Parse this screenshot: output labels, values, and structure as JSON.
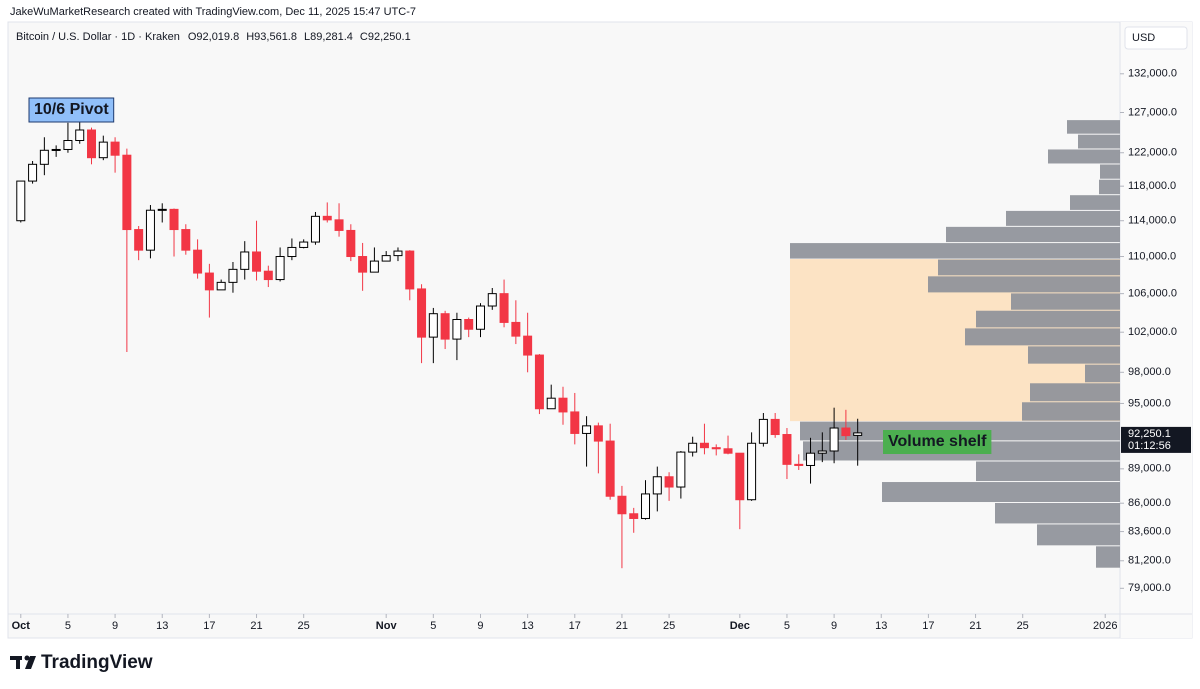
{
  "header": {
    "attribution": "JakeWuMarketResearch created with TradingView.com, Dec 11, 2025 15:47 UTC-7",
    "brand": "TradingView"
  },
  "chart_data": {
    "type": "candlestick",
    "title": "Bitcoin / U.S. Dollar · 1D · Kraken",
    "ohlc_labels": [
      "O92,019.8",
      "H93,561.8",
      "L89,281.4",
      "C92,250.1"
    ],
    "currency": "USD",
    "last_price_label": "92,250.1",
    "countdown": "01:12:56",
    "up_color": "#ffffff",
    "down_color": "#f23645",
    "log_scale": true,
    "x": [
      "2025-10-01",
      "2025-10-02",
      "2025-10-03",
      "2025-10-04",
      "2025-10-05",
      "2025-10-06",
      "2025-10-07",
      "2025-10-08",
      "2025-10-09",
      "2025-10-10",
      "2025-10-11",
      "2025-10-12",
      "2025-10-13",
      "2025-10-14",
      "2025-10-15",
      "2025-10-16",
      "2025-10-17",
      "2025-10-18",
      "2025-10-19",
      "2025-10-20",
      "2025-10-21",
      "2025-10-22",
      "2025-10-23",
      "2025-10-24",
      "2025-10-25",
      "2025-10-26",
      "2025-10-27",
      "2025-10-28",
      "2025-10-29",
      "2025-10-30",
      "2025-10-31",
      "2025-11-01",
      "2025-11-02",
      "2025-11-03",
      "2025-11-04",
      "2025-11-05",
      "2025-11-06",
      "2025-11-07",
      "2025-11-08",
      "2025-11-09",
      "2025-11-10",
      "2025-11-11",
      "2025-11-12",
      "2025-11-13",
      "2025-11-14",
      "2025-11-15",
      "2025-11-16",
      "2025-11-17",
      "2025-11-18",
      "2025-11-19",
      "2025-11-20",
      "2025-11-21",
      "2025-11-22",
      "2025-11-23",
      "2025-11-24",
      "2025-11-25",
      "2025-11-26",
      "2025-11-27",
      "2025-11-28",
      "2025-11-29",
      "2025-11-30",
      "2025-12-01",
      "2025-12-02",
      "2025-12-03",
      "2025-12-04",
      "2025-12-05",
      "2025-12-06",
      "2025-12-07",
      "2025-12-08",
      "2025-12-09",
      "2025-12-10",
      "2025-12-11"
    ],
    "open": [
      114000,
      118600,
      120600,
      122300,
      122400,
      123500,
      124800,
      121400,
      123300,
      121700,
      113000,
      110700,
      115200,
      115300,
      113000,
      110700,
      108200,
      106400,
      107200,
      108600,
      110500,
      108400,
      107500,
      110000,
      111000,
      111600,
      114500,
      114100,
      112900,
      110000,
      108300,
      109500,
      110100,
      110600,
      106500,
      101500,
      103900,
      101300,
      103300,
      102300,
      104700,
      106000,
      103000,
      101600,
      99700,
      94500,
      95500,
      94200,
      92200,
      92900,
      91500,
      86600,
      85100,
      84700,
      86800,
      88300,
      87400,
      90500,
      91300,
      90900,
      90800,
      90400,
      86300,
      91300,
      93500,
      92100,
      89400,
      89300,
      90400,
      90600,
      92700,
      92019.8
    ],
    "high": [
      118600,
      121000,
      123900,
      122900,
      125700,
      126200,
      125100,
      124100,
      123900,
      122500,
      113400,
      115800,
      116000,
      115400,
      113600,
      111900,
      109200,
      107500,
      109400,
      111700,
      114000,
      109000,
      111000,
      112000,
      111900,
      115000,
      116100,
      116000,
      113600,
      111500,
      111000,
      110600,
      111000,
      110700,
      107000,
      104500,
      104200,
      104000,
      103500,
      105000,
      106600,
      107500,
      105300,
      104000,
      99800,
      96800,
      96600,
      96000,
      93800,
      93200,
      93100,
      87500,
      85600,
      88000,
      89200,
      88700,
      90600,
      91900,
      93100,
      91200,
      92000,
      90400,
      92300,
      94100,
      94100,
      92700,
      90300,
      91800,
      92300,
      94600,
      94400,
      93561.8
    ],
    "low": [
      113800,
      118300,
      119300,
      121500,
      122000,
      123100,
      120600,
      121100,
      119600,
      100000,
      109600,
      109800,
      113800,
      110000,
      110200,
      107600,
      103500,
      106400,
      106100,
      107500,
      107400,
      106700,
      107300,
      109600,
      110900,
      111300,
      113800,
      112200,
      109500,
      106300,
      108300,
      109500,
      109500,
      105300,
      98900,
      98900,
      100300,
      99200,
      101500,
      101500,
      104300,
      102500,
      100800,
      98000,
      94000,
      94500,
      93000,
      91200,
      89200,
      88600,
      86300,
      80600,
      83500,
      84600,
      85300,
      86200,
      86400,
      90100,
      90300,
      90200,
      90300,
      83800,
      86200,
      91000,
      91800,
      88100,
      88900,
      87700,
      89600,
      89500,
      91600,
      89281.4
    ],
    "close": [
      118600,
      120600,
      122300,
      122400,
      123500,
      124800,
      121400,
      123300,
      121700,
      113000,
      110700,
      115200,
      115300,
      113000,
      110700,
      108200,
      106400,
      107200,
      108600,
      110500,
      108400,
      107500,
      110000,
      111000,
      111600,
      114500,
      114100,
      112900,
      110000,
      108300,
      109500,
      110100,
      110600,
      106500,
      101500,
      103900,
      101300,
      103300,
      102300,
      104700,
      106000,
      103000,
      101600,
      99700,
      94500,
      95500,
      94200,
      92200,
      92900,
      91500,
      86600,
      85100,
      84700,
      86800,
      88300,
      87400,
      90500,
      91300,
      90900,
      90800,
      90400,
      86300,
      91300,
      93500,
      92100,
      89400,
      89300,
      90400,
      90600,
      92700,
      92000,
      92250.1
    ],
    "xlim": [
      "2025-09-30",
      "2026-01-02"
    ],
    "xticks": [
      {
        "value": "2025-10-01",
        "label": "Oct"
      },
      {
        "value": "2025-10-05",
        "label": "5"
      },
      {
        "value": "2025-10-09",
        "label": "9"
      },
      {
        "value": "2025-10-13",
        "label": "13"
      },
      {
        "value": "2025-10-17",
        "label": "17"
      },
      {
        "value": "2025-10-21",
        "label": "21"
      },
      {
        "value": "2025-10-25",
        "label": "25"
      },
      {
        "value": "2025-11-01",
        "label": "Nov"
      },
      {
        "value": "2025-11-05",
        "label": "5"
      },
      {
        "value": "2025-11-09",
        "label": "9"
      },
      {
        "value": "2025-11-13",
        "label": "13"
      },
      {
        "value": "2025-11-17",
        "label": "17"
      },
      {
        "value": "2025-11-21",
        "label": "21"
      },
      {
        "value": "2025-11-25",
        "label": "25"
      },
      {
        "value": "2025-12-01",
        "label": "Dec"
      },
      {
        "value": "2025-12-05",
        "label": "5"
      },
      {
        "value": "2025-12-09",
        "label": "9"
      },
      {
        "value": "2025-12-13",
        "label": "13"
      },
      {
        "value": "2025-12-17",
        "label": "17"
      },
      {
        "value": "2025-12-21",
        "label": "21"
      },
      {
        "value": "2025-12-25",
        "label": "25"
      },
      {
        "value": "2026-01-01",
        "label": "2026"
      }
    ],
    "ylim": [
      77000,
      139000
    ],
    "yticks": [
      {
        "value": 132000,
        "label": "132,000.0"
      },
      {
        "value": 127000,
        "label": "127,000.0"
      },
      {
        "value": 122000,
        "label": "122,000.0"
      },
      {
        "value": 118000,
        "label": "118,000.0"
      },
      {
        "value": 114000,
        "label": "114,000.0"
      },
      {
        "value": 110000,
        "label": "110,000.0"
      },
      {
        "value": 106000,
        "label": "106,000.0"
      },
      {
        "value": 102000,
        "label": "102,000.0"
      },
      {
        "value": 98000,
        "label": "98,000.0"
      },
      {
        "value": 95000,
        "label": "95,000.0"
      },
      {
        "value": 89000,
        "label": "89,000.0"
      },
      {
        "value": 86000,
        "label": "86,000.0"
      },
      {
        "value": 83600,
        "label": "83,600.0"
      },
      {
        "value": 81200,
        "label": "81,200.0"
      },
      {
        "value": 79000,
        "label": "79,000.0"
      }
    ],
    "volume_profile": {
      "color": "#8e9199",
      "price_bins": [
        80600,
        82420,
        84240,
        86060,
        87880,
        89700,
        91520,
        93340,
        95160,
        96980,
        98800,
        100620,
        102440,
        104260,
        106080,
        107900,
        109720,
        111540,
        113360,
        115180,
        117000,
        118820,
        120640,
        122460,
        124280,
        126100
      ],
      "volumes": [
        24,
        83,
        125,
        238,
        144,
        317,
        320,
        98,
        90,
        35,
        92,
        155,
        144,
        109,
        192,
        182,
        330,
        174,
        114,
        50,
        21,
        20,
        72,
        42,
        53
      ]
    },
    "highlight_zone": [
      93340,
      109720
    ],
    "highlight_color": "#fce3c4",
    "annotations": [
      {
        "text": "10/6 Pivot",
        "fill": "#90bff9",
        "text_color": "#000000"
      },
      {
        "text": "Volume shelf",
        "fill": "#4caf50",
        "text_color": "#ffffff"
      }
    ]
  }
}
